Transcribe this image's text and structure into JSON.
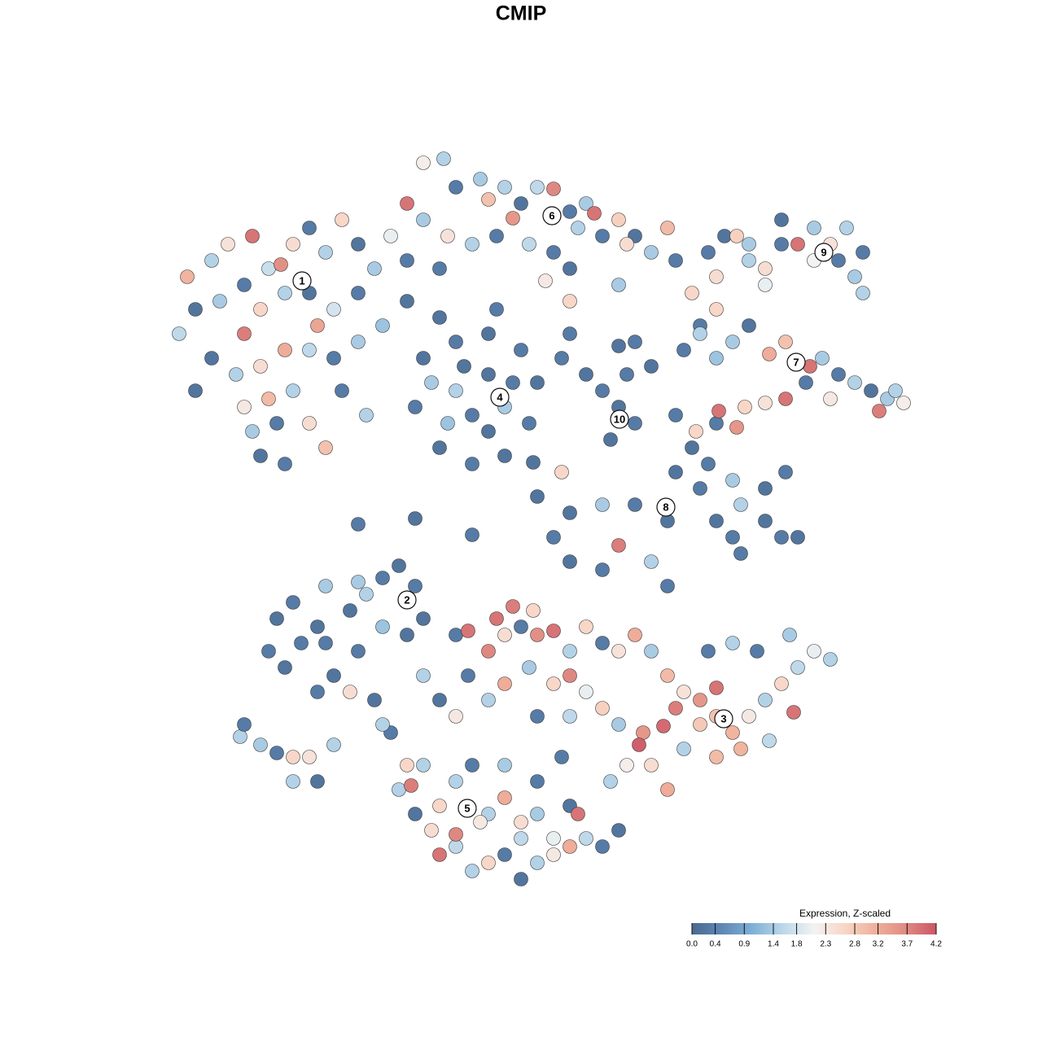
{
  "chart_data": {
    "type": "scatter",
    "title": "CMIP",
    "xlim": [
      180,
      1140
    ],
    "ylim": [
      1110,
      170
    ],
    "x": [
      220,
      240,
      260,
      280,
      300,
      310,
      330,
      345,
      360,
      380,
      400,
      420,
      440,
      460,
      480,
      500,
      230,
      270,
      300,
      320,
      350,
      380,
      410,
      440,
      470,
      500,
      260,
      290,
      320,
      350,
      380,
      410,
      440,
      300,
      330,
      360,
      380,
      340,
      320,
      350,
      400,
      310,
      240,
      450,
      420,
      390,
      520,
      545,
      560,
      590,
      600,
      620,
      640,
      660,
      680,
      700,
      720,
      730,
      740,
      760,
      780,
      800,
      820,
      830,
      500,
      520,
      550,
      580,
      610,
      630,
      650,
      680,
      700,
      710,
      770,
      540,
      670,
      700,
      760,
      520,
      560,
      600,
      640,
      660,
      650,
      620,
      580,
      540,
      510,
      560,
      600,
      620,
      580,
      550,
      600,
      630,
      570,
      530,
      540,
      610,
      690,
      720,
      700,
      740,
      760,
      780,
      750,
      770,
      800,
      780,
      760,
      870,
      890,
      905,
      920,
      940,
      960,
      980,
      1000,
      1020,
      1040,
      1060,
      1050,
      1060,
      1030,
      960,
      920,
      1000,
      880,
      850,
      940,
      860,
      880,
      900,
      920,
      945,
      965,
      995,
      1010,
      1030,
      1050,
      1070,
      1090,
      1110,
      1080,
      1020,
      990,
      940,
      965,
      880,
      840,
      860,
      880,
      905,
      915,
      883,
      855,
      1100,
      830,
      850,
      870,
      830,
      860,
      900,
      940,
      965,
      880,
      900,
      940,
      960,
      980,
      910,
      820,
      780,
      740,
      700,
      680,
      700,
      740,
      760,
      800,
      820,
      660,
      690,
      655,
      580,
      510,
      440,
      910,
      330,
      350,
      370,
      390,
      360,
      400,
      430,
      450,
      470,
      490,
      510,
      520,
      470,
      440,
      410,
      390,
      430,
      460,
      340,
      400,
      500,
      440,
      560,
      575,
      600,
      620,
      640,
      660,
      680,
      700,
      720,
      740,
      760,
      780,
      800,
      820,
      840,
      860,
      880,
      900,
      920,
      940,
      960,
      980,
      1000,
      1020,
      970,
      930,
      900,
      870,
      880,
      860,
      830,
      815,
      790,
      785,
      800,
      820,
      840,
      880,
      910,
      945,
      975,
      700,
      720,
      680,
      650,
      620,
      600,
      660,
      700,
      740,
      760,
      770,
      750,
      610,
      630,
      655,
      575,
      540,
      520,
      560,
      480,
      500,
      490,
      510,
      530,
      540,
      560,
      580,
      600,
      620,
      640,
      660,
      680,
      700,
      720,
      740,
      760,
      600,
      620,
      640,
      660,
      560,
      540,
      580,
      620,
      660,
      700,
      710,
      505,
      560,
      680,
      520,
      470,
      690,
      590,
      640,
      295,
      320,
      340,
      360,
      380,
      360,
      410,
      390,
      300
    ],
    "y": [
      410,
      380,
      320,
      300,
      350,
      290,
      330,
      325,
      300,
      280,
      310,
      270,
      300,
      330,
      290,
      320,
      340,
      370,
      410,
      380,
      360,
      360,
      380,
      360,
      400,
      370,
      440,
      460,
      450,
      430,
      430,
      440,
      420,
      500,
      490,
      480,
      520,
      520,
      560,
      570,
      550,
      530,
      480,
      510,
      480,
      400,
      200,
      195,
      230,
      220,
      245,
      230,
      250,
      230,
      232,
      260,
      250,
      262,
      290,
      270,
      290,
      310,
      280,
      320,
      250,
      270,
      290,
      300,
      290,
      268,
      300,
      310,
      330,
      280,
      300,
      330,
      345,
      370,
      350,
      440,
      420,
      410,
      430,
      470,
      520,
      560,
      570,
      550,
      500,
      480,
      460,
      500,
      510,
      520,
      530,
      470,
      450,
      470,
      390,
      380,
      440,
      460,
      410,
      480,
      500,
      520,
      540,
      460,
      450,
      420,
      425,
      310,
      290,
      290,
      320,
      330,
      300,
      300,
      280,
      300,
      280,
      310,
      340,
      360,
      320,
      270,
      300,
      320,
      340,
      360,
      350,
      400,
      380,
      420,
      400,
      435,
      420,
      450,
      440,
      460,
      470,
      480,
      490,
      495,
      505,
      490,
      470,
      495,
      490,
      440,
      430,
      410,
      520,
      525,
      500,
      505,
      530,
      480,
      510,
      550,
      570,
      580,
      600,
      590,
      600,
      580,
      640,
      660,
      640,
      660,
      660,
      680,
      640,
      620,
      620,
      630,
      660,
      690,
      700,
      670,
      690,
      720,
      610,
      580,
      568,
      657,
      637,
      644,
      620,
      800,
      820,
      790,
      770,
      740,
      720,
      750,
      730,
      710,
      695,
      720,
      760,
      770,
      800,
      830,
      850,
      850,
      860,
      760,
      790,
      780,
      715,
      780,
      775,
      800,
      780,
      770,
      780,
      775,
      800,
      770,
      790,
      800,
      780,
      800,
      830,
      850,
      860,
      880,
      900,
      880,
      860,
      840,
      820,
      800,
      810,
      780,
      800,
      790,
      800,
      845,
      890,
      870,
      892,
      900,
      915,
      940,
      970,
      920,
      930,
      920,
      910,
      875,
      830,
      850,
      840,
      820,
      840,
      860,
      880,
      880,
      870,
      890,
      940,
      960,
      760,
      745,
      750,
      830,
      860,
      830,
      880,
      900,
      940,
      970,
      1000,
      1020,
      1050,
      1040,
      1070,
      1060,
      1050,
      1080,
      1060,
      1050,
      1040,
      1030,
      1040,
      1020,
      1000,
      980,
      1010,
      1000,
      960,
      990,
      940,
      940,
      960,
      990,
      1000,
      965,
      1025,
      1030,
      940,
      890,
      930,
      1010,
      1030,
      905,
      915,
      925,
      930,
      930,
      960,
      915,
      960,
      890
    ],
    "values": [
      1.6,
      0.2,
      1.5,
      2.4,
      0.3,
      3.9,
      1.7,
      3.6,
      2.5,
      0.3,
      1.5,
      2.6,
      0.2,
      1.4,
      2.0,
      0.3,
      3.1,
      1.4,
      3.8,
      2.6,
      1.5,
      0.2,
      1.8,
      0.3,
      1.3,
      0.2,
      0.2,
      1.5,
      2.5,
      3.2,
      1.6,
      0.3,
      1.4,
      2.3,
      3.0,
      1.5,
      2.5,
      0.3,
      0.2,
      0.3,
      2.9,
      1.4,
      0.2,
      1.5,
      0.3,
      3.3,
      2.2,
      1.5,
      0.3,
      1.4,
      2.9,
      1.5,
      0.2,
      1.6,
      3.7,
      0.3,
      1.4,
      3.9,
      0.3,
      2.7,
      0.2,
      1.4,
      3.0,
      0.3,
      3.9,
      1.4,
      2.4,
      1.5,
      0.3,
      3.5,
      1.6,
      0.3,
      0.2,
      1.5,
      2.5,
      0.3,
      2.3,
      2.6,
      1.4,
      0.2,
      0.3,
      0.2,
      0.3,
      0.2,
      0.3,
      0.2,
      0.3,
      0.2,
      0.3,
      1.5,
      0.2,
      1.4,
      0.3,
      1.3,
      0.2,
      0.3,
      0.2,
      1.4,
      0.2,
      0.3,
      0.3,
      0.2,
      0.3,
      0.3,
      0.2,
      0.3,
      0.2,
      0.3,
      0.2,
      0.3,
      0.2,
      0.3,
      0.2,
      2.7,
      1.5,
      2.5,
      0.3,
      3.9,
      1.4,
      2.4,
      1.5,
      0.3,
      1.4,
      1.5,
      0.3,
      0.2,
      1.4,
      2.1,
      2.5,
      2.6,
      2.0,
      0.3,
      2.6,
      1.4,
      0.2,
      3.2,
      2.9,
      3.9,
      1.4,
      0.3,
      1.5,
      0.2,
      1.4,
      2.2,
      3.8,
      2.3,
      0.3,
      2.4,
      3.9,
      1.3,
      0.3,
      1.5,
      0.3,
      3.5,
      2.6,
      3.9,
      2.6,
      1.5,
      0.3,
      0.2,
      0.3,
      0.2,
      0.3,
      1.4,
      0.2,
      0.3,
      0.2,
      0.3,
      0.2,
      0.3,
      0.2,
      0.3,
      0.2,
      0.3,
      1.4,
      0.2,
      0.3,
      0.2,
      0.3,
      3.8,
      1.5,
      0.3,
      0.2,
      2.6,
      0.2,
      0.3,
      0.2,
      0.3,
      1.5,
      0.3,
      0.2,
      0.3,
      0.2,
      0.3,
      1.4,
      0.2,
      1.5,
      0.3,
      0.2,
      0.3,
      0.2,
      1.3,
      0.3,
      0.2,
      0.3,
      2.5,
      0.2,
      0.2,
      0.3,
      0.2,
      1.4,
      0.3,
      3.9,
      3.7,
      2.5,
      0.3,
      3.6,
      3.9,
      1.5,
      2.6,
      0.3,
      2.4,
      3.2,
      1.4,
      3.0,
      2.4,
      3.5,
      2.9,
      3.1,
      2.3,
      1.5,
      2.6,
      1.6,
      2.0,
      1.5,
      1.4,
      0.3,
      1.5,
      0.3,
      3.9,
      2.8,
      3.8,
      4.0,
      3.5,
      4.1,
      2.5,
      3.2,
      1.5,
      3.0,
      3.1,
      1.6,
      3.9,
      3.7,
      2.0,
      2.6,
      1.4,
      3.2,
      1.5,
      0.3,
      1.6,
      2.7,
      1.4,
      2.2,
      1.5,
      3.9,
      3.8,
      2.6,
      0.3,
      0.2,
      1.5,
      2.3,
      0.3,
      2.6,
      1.5,
      0.2,
      2.5,
      3.9,
      1.6,
      1.5,
      2.6,
      0.3,
      0.2,
      1.5,
      2.3,
      3.2,
      1.6,
      0.3,
      0.2,
      1.5,
      3.2,
      2.5,
      1.4,
      1.5,
      2.6,
      0.3,
      1.4,
      0.3,
      0.2,
      3.9,
      3.8,
      3.7,
      2.0,
      1.5,
      1.5,
      0.3,
      2.3,
      1.6,
      1.5,
      1.4,
      0.3,
      2.6,
      2.4,
      1.5,
      1.5,
      0.2,
      0.3
    ],
    "clusters": {
      "labels": [
        "1",
        "6",
        "4",
        "10",
        "9",
        "7",
        "8",
        "2",
        "3",
        "5"
      ],
      "x": [
        371,
        678,
        614,
        761,
        1012,
        978,
        818,
        500,
        889,
        574
      ],
      "y": [
        345,
        265,
        488,
        515,
        310,
        445,
        623,
        737,
        883,
        993
      ]
    },
    "colorbar": {
      "title": "Expression, Z-scaled",
      "lim": [
        0,
        4.2
      ],
      "colors": [
        "#4a6990",
        "#5f88b6",
        "#7fb1d6",
        "#bcd8ea",
        "#f3f3f3",
        "#f8d6c6",
        "#efb09b",
        "#e08b82",
        "#cc5566"
      ],
      "ticks": [
        {
          "value": 0,
          "label": "0.0"
        },
        0.4,
        0.9,
        1.4,
        1.8,
        2.3,
        2.8,
        3.2,
        3.7,
        4.2
      ]
    }
  }
}
